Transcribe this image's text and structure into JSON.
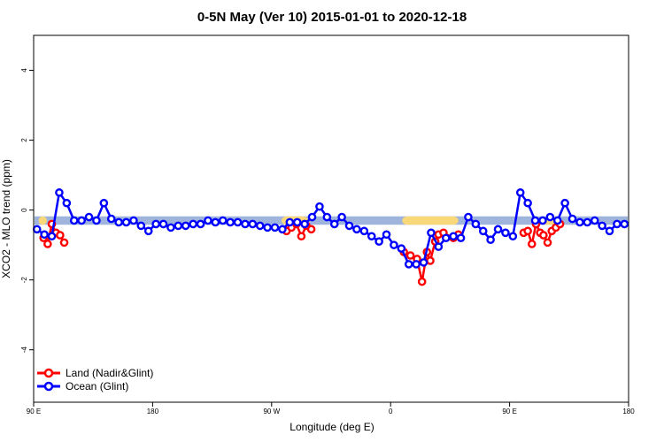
{
  "chart_data": {
    "type": "line",
    "title": "0-5N May (Ver 10)   2015-01-01 to 2020-12-18",
    "xlabel": "Longitude (deg E)",
    "ylabel": "XCO2 - MLO trend (ppm)",
    "xlim": [
      90,
      450
    ],
    "ylim": [
      -5.5,
      5
    ],
    "x_ticks": [
      {
        "value": 90,
        "label": "90 E"
      },
      {
        "value": 162,
        "label": "180"
      },
      {
        "value": 234,
        "label": "90 W"
      },
      {
        "value": 306,
        "label": "0"
      },
      {
        "value": 378,
        "label": "90 E"
      },
      {
        "value": 450,
        "label": "180"
      }
    ],
    "y_ticks": [
      -4,
      -2,
      0,
      2,
      4
    ],
    "legend_position": "bottom-left",
    "colors": {
      "land": "#ff0000",
      "ocean": "#0000ff",
      "band_blue": "#9fb4dc",
      "band_yellow": "#f8d878"
    },
    "background_band": {
      "y_range": [
        -0.42,
        -0.18
      ],
      "yellow_segments": [
        [
          93,
          98
        ],
        [
          240,
          256
        ],
        [
          313,
          347
        ],
        [
          398,
          408
        ]
      ]
    },
    "series": [
      {
        "name": "Land (Nadir&Glint)",
        "color": "#ff0000",
        "x": [
          96,
          98.5,
          101,
          103.5,
          106,
          108.5,
          243,
          246,
          249,
          252,
          255,
          258,
          314,
          318,
          322,
          325,
          328,
          330,
          333,
          335,
          338,
          344,
          347,
          386.5,
          389,
          391.5,
          394,
          396.5,
          398.5,
          401,
          403.5,
          406,
          408.5
        ],
        "y": [
          -0.8,
          -0.97,
          -0.4,
          -0.65,
          -0.72,
          -0.93,
          -0.6,
          -0.5,
          -0.4,
          -0.75,
          -0.45,
          -0.55,
          -1.2,
          -1.3,
          -1.4,
          -2.05,
          -1.2,
          -1.45,
          -0.9,
          -0.7,
          -0.65,
          -0.8,
          -0.7,
          -0.65,
          -0.6,
          -0.97,
          -0.4,
          -0.65,
          -0.72,
          -0.93,
          -0.6,
          -0.5,
          -0.4
        ]
      },
      {
        "name": "Ocean (Glint)",
        "color": "#0000ff",
        "x": [
          92,
          96.5,
          101,
          105.5,
          110,
          114.5,
          119,
          123.5,
          128,
          132.5,
          137,
          141.5,
          146,
          150.5,
          155,
          159.5,
          164,
          168.5,
          173,
          177.5,
          182,
          186.5,
          191,
          195.5,
          200,
          204.5,
          209,
          213.5,
          218,
          222.5,
          227,
          231.5,
          236,
          240.5,
          245,
          249.5,
          254,
          258.5,
          263,
          267.5,
          272,
          276.5,
          281,
          285.5,
          290,
          294.5,
          299,
          303.5,
          308,
          312.5,
          317,
          321.5,
          326,
          330.5,
          335,
          339.5,
          344,
          348.5,
          353,
          357.5,
          362,
          366.5,
          371,
          375.5,
          380,
          384.5,
          389,
          393.5,
          398,
          402.5,
          407,
          411.5,
          416,
          420.5,
          425,
          429.5,
          434,
          438.5,
          443,
          447.5
        ],
        "y": [
          -0.55,
          -0.7,
          -0.75,
          0.5,
          0.2,
          -0.3,
          -0.3,
          -0.2,
          -0.3,
          0.2,
          -0.25,
          -0.35,
          -0.35,
          -0.3,
          -0.45,
          -0.6,
          -0.4,
          -0.4,
          -0.5,
          -0.45,
          -0.45,
          -0.4,
          -0.4,
          -0.3,
          -0.35,
          -0.3,
          -0.35,
          -0.35,
          -0.4,
          -0.4,
          -0.45,
          -0.5,
          -0.5,
          -0.55,
          -0.35,
          -0.35,
          -0.4,
          -0.2,
          0.1,
          -0.2,
          -0.4,
          -0.2,
          -0.45,
          -0.55,
          -0.6,
          -0.75,
          -0.9,
          -0.7,
          -1.0,
          -1.1,
          -1.55,
          -1.55,
          -1.5,
          -0.65,
          -1.05,
          -0.8,
          -0.75,
          -0.8,
          -0.2,
          -0.4,
          -0.6,
          -0.85,
          -0.55,
          -0.65,
          -0.75,
          0.5,
          0.2,
          -0.3,
          -0.3,
          -0.2,
          -0.3,
          0.2,
          -0.25,
          -0.35,
          -0.35,
          -0.3,
          -0.45,
          -0.6,
          -0.4,
          -0.4
        ]
      }
    ]
  }
}
